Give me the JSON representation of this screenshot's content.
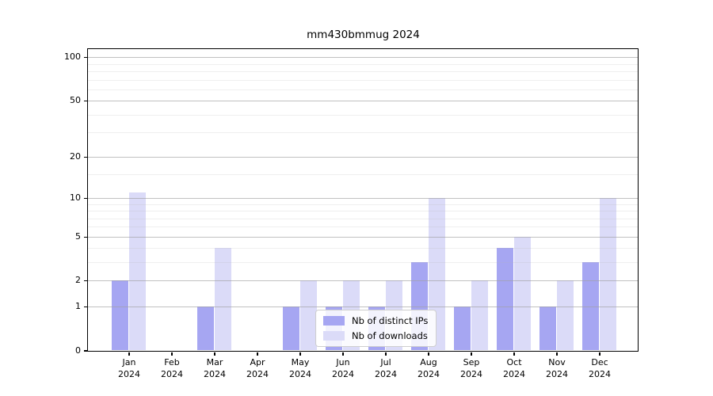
{
  "chart_data": {
    "type": "bar",
    "title": "mm430bmmug 2024",
    "categories": [
      {
        "month": "Jan",
        "year": "2024"
      },
      {
        "month": "Feb",
        "year": "2024"
      },
      {
        "month": "Mar",
        "year": "2024"
      },
      {
        "month": "Apr",
        "year": "2024"
      },
      {
        "month": "May",
        "year": "2024"
      },
      {
        "month": "Jun",
        "year": "2024"
      },
      {
        "month": "Jul",
        "year": "2024"
      },
      {
        "month": "Aug",
        "year": "2024"
      },
      {
        "month": "Sep",
        "year": "2024"
      },
      {
        "month": "Oct",
        "year": "2024"
      },
      {
        "month": "Nov",
        "year": "2024"
      },
      {
        "month": "Dec",
        "year": "2024"
      }
    ],
    "series": [
      {
        "name": "Nb of distinct IPs",
        "color": "#a6a6f2",
        "values": [
          2,
          0,
          1,
          0,
          1,
          1,
          1,
          3,
          1,
          4,
          1,
          3
        ]
      },
      {
        "name": "Nb of downloads",
        "color": "#dbdbf8",
        "values": [
          11,
          0,
          4,
          0,
          2,
          2,
          2,
          10,
          2,
          5,
          2,
          10
        ]
      }
    ],
    "yscale": "log1p",
    "yticks": [
      0,
      1,
      2,
      5,
      10,
      20,
      50,
      100
    ],
    "minor_ticks": [
      3,
      4,
      6,
      7,
      8,
      9,
      15,
      30,
      40,
      60,
      70,
      80,
      90
    ],
    "ylim": [
      0,
      113
    ],
    "xlabel": "",
    "ylabel": "",
    "grid": true,
    "grid_above_bars": true,
    "legend_position": "lower-center"
  }
}
